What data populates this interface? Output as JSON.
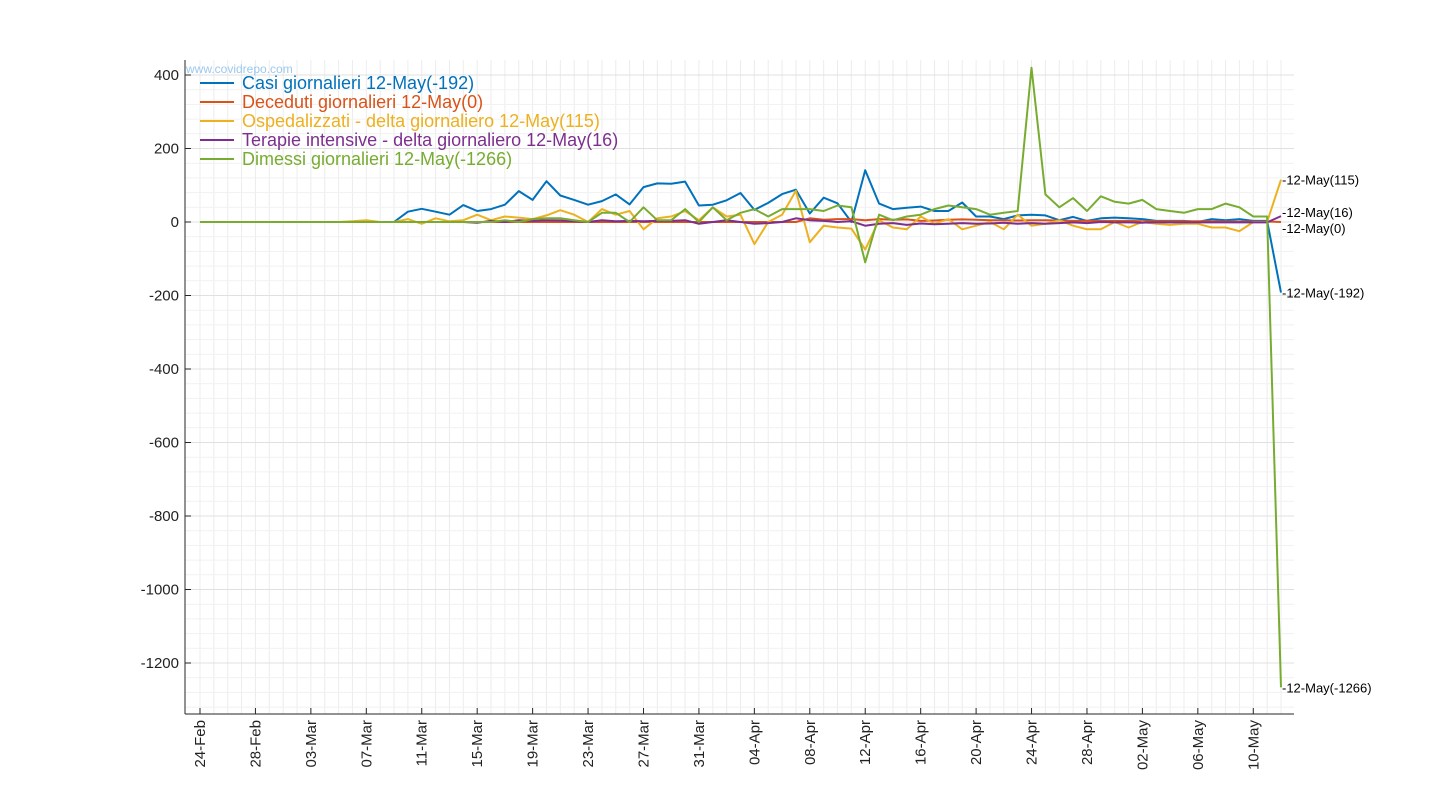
{
  "watermark": "www.covidrepo.com",
  "chart_data": {
    "type": "line",
    "x_start": "24-Feb",
    "x_end": "12-May",
    "categories": [
      "24-Feb",
      "25-Feb",
      "26-Feb",
      "27-Feb",
      "28-Feb",
      "29-Feb",
      "01-Mar",
      "02-Mar",
      "03-Mar",
      "04-Mar",
      "05-Mar",
      "06-Mar",
      "07-Mar",
      "08-Mar",
      "09-Mar",
      "10-Mar",
      "11-Mar",
      "12-Mar",
      "13-Mar",
      "14-Mar",
      "15-Mar",
      "16-Mar",
      "17-Mar",
      "18-Mar",
      "19-Mar",
      "20-Mar",
      "21-Mar",
      "22-Mar",
      "23-Mar",
      "24-Mar",
      "25-Mar",
      "26-Mar",
      "27-Mar",
      "28-Mar",
      "29-Mar",
      "30-Mar",
      "31-Mar",
      "01-Apr",
      "02-Apr",
      "03-Apr",
      "04-Apr",
      "05-Apr",
      "06-Apr",
      "07-Apr",
      "08-Apr",
      "09-Apr",
      "10-Apr",
      "11-Apr",
      "12-Apr",
      "13-Apr",
      "14-Apr",
      "15-Apr",
      "16-Apr",
      "17-Apr",
      "18-Apr",
      "19-Apr",
      "20-Apr",
      "21-Apr",
      "22-Apr",
      "23-Apr",
      "24-Apr",
      "25-Apr",
      "26-Apr",
      "27-Apr",
      "28-Apr",
      "29-Apr",
      "30-Apr",
      "01-May",
      "02-May",
      "03-May",
      "04-May",
      "05-May",
      "06-May",
      "07-May",
      "08-May",
      "09-May",
      "10-May",
      "11-May",
      "12-May"
    ],
    "xtick_labels": [
      "24-Feb",
      "28-Feb",
      "03-Mar",
      "07-Mar",
      "11-Mar",
      "15-Mar",
      "19-Mar",
      "23-Mar",
      "27-Mar",
      "31-Mar",
      "04-Apr",
      "08-Apr",
      "12-Apr",
      "16-Apr",
      "20-Apr",
      "24-Apr",
      "28-Apr",
      "02-May",
      "06-May",
      "10-May"
    ],
    "yticks": [
      400,
      200,
      0,
      -200,
      -400,
      -600,
      -800,
      -1000,
      -1200
    ],
    "ylim": [
      -1330,
      420
    ],
    "grid": true,
    "legend_position": "top-left",
    "series": [
      {
        "name": "Casi giornalieri 12-May(-192)",
        "end_label": "-12-May(-192)",
        "color": "#0072BD",
        "values": [
          0,
          0,
          0,
          0,
          0,
          0,
          0,
          0,
          0,
          0,
          0,
          0,
          0,
          0,
          0,
          28,
          36,
          28,
          20,
          46,
          30,
          35,
          47,
          84,
          60,
          111,
          72,
          60,
          47,
          57,
          75,
          48,
          95,
          105,
          104,
          110,
          45,
          47,
          59,
          79,
          33,
          52,
          76,
          88,
          23,
          66,
          51,
          0,
          141,
          50,
          35,
          39,
          42,
          30,
          30,
          53,
          15,
          15,
          8,
          18,
          20,
          18,
          5,
          14,
          3,
          10,
          12,
          10,
          8,
          3,
          3,
          3,
          0,
          8,
          5,
          8,
          3,
          3,
          -192
        ]
      },
      {
        "name": "Deceduti giornalieri 12-May(0)",
        "end_label": "-12-May(0)",
        "color": "#D95319",
        "values": [
          0,
          0,
          0,
          0,
          0,
          0,
          0,
          0,
          0,
          0,
          0,
          0,
          0,
          0,
          0,
          0,
          0,
          0,
          0,
          0,
          0,
          0,
          0,
          0,
          0,
          0,
          0,
          0,
          0,
          0,
          0,
          0,
          0,
          0,
          0,
          0,
          0,
          0,
          0,
          0,
          0,
          0,
          0,
          0,
          10,
          6,
          8,
          8,
          5,
          8,
          6,
          7,
          3,
          4,
          6,
          7,
          6,
          5,
          5,
          4,
          5,
          5,
          4,
          3,
          3,
          3,
          3,
          3,
          2,
          2,
          2,
          2,
          2,
          2,
          1,
          1,
          1,
          1,
          0
        ]
      },
      {
        "name": "Ospedalizzati - delta giornaliero 12-May(115)",
        "end_label": "-12-May(115)",
        "color": "#EDB120",
        "values": [
          0,
          0,
          0,
          0,
          0,
          0,
          0,
          0,
          0,
          0,
          0,
          2,
          5,
          0,
          0,
          8,
          -5,
          10,
          2,
          5,
          20,
          5,
          15,
          12,
          8,
          18,
          32,
          20,
          0,
          35,
          20,
          30,
          -20,
          10,
          15,
          30,
          5,
          40,
          15,
          20,
          -60,
          0,
          20,
          85,
          -55,
          -10,
          -15,
          -18,
          -75,
          5,
          -15,
          -20,
          15,
          -5,
          8,
          -20,
          -10,
          0,
          -20,
          20,
          -10,
          -5,
          5,
          -10,
          -20,
          -20,
          0,
          -15,
          0,
          -5,
          -8,
          -5,
          -5,
          -15,
          -15,
          -25,
          0,
          0,
          115
        ]
      },
      {
        "name": "Terapie intensive - delta giornaliero 12-May(16)",
        "end_label": "-12-May(16)",
        "color": "#7E2F8E",
        "values": [
          0,
          0,
          0,
          0,
          0,
          0,
          0,
          0,
          0,
          0,
          0,
          0,
          0,
          0,
          0,
          0,
          0,
          0,
          0,
          0,
          -2,
          3,
          0,
          5,
          3,
          5,
          4,
          2,
          0,
          5,
          2,
          3,
          2,
          3,
          3,
          5,
          -5,
          0,
          5,
          0,
          -5,
          -3,
          0,
          10,
          5,
          3,
          0,
          2,
          -10,
          -5,
          -3,
          -8,
          -4,
          -6,
          -5,
          -3,
          -5,
          -4,
          -2,
          -5,
          -3,
          -5,
          -3,
          -1,
          -3,
          0,
          -1,
          -1,
          -2,
          -1,
          -1,
          -1,
          -1,
          -1,
          -1,
          -1,
          -1,
          -1,
          16
        ]
      },
      {
        "name": "Dimessi giornalieri 12-May(-1266)",
        "end_label": "-12-May(-1266)",
        "color": "#77AC30",
        "values": [
          0,
          0,
          0,
          0,
          0,
          0,
          0,
          0,
          0,
          0,
          0,
          0,
          0,
          0,
          0,
          0,
          0,
          0,
          0,
          0,
          0,
          0,
          5,
          0,
          8,
          10,
          10,
          5,
          0,
          25,
          25,
          0,
          40,
          5,
          5,
          35,
          0,
          40,
          5,
          25,
          35,
          15,
          35,
          35,
          35,
          30,
          45,
          40,
          -110,
          20,
          5,
          15,
          20,
          35,
          45,
          40,
          35,
          20,
          25,
          30,
          420,
          75,
          40,
          65,
          30,
          70,
          55,
          50,
          60,
          35,
          30,
          25,
          35,
          35,
          50,
          40,
          15,
          15,
          -1266
        ]
      }
    ]
  }
}
